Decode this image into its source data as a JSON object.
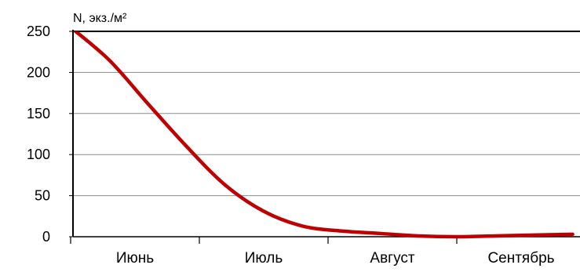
{
  "chart_data": {
    "type": "line",
    "ylabel": "N, экз./м²",
    "xlabel": "",
    "categories": [
      "Июнь",
      "Июль",
      "Август",
      "Сентябрь"
    ],
    "ylim": [
      0,
      250
    ],
    "yticks": [
      0,
      50,
      100,
      150,
      200,
      250
    ],
    "ytick_labels": [
      "0",
      "50",
      "100",
      "150",
      "200",
      "250"
    ],
    "grid": "horizontal",
    "legend": "none",
    "series": [
      {
        "color": "#c00000",
        "points": [
          {
            "x": 0.0,
            "y": 255
          },
          {
            "x": 0.3,
            "y": 215
          },
          {
            "x": 0.6,
            "y": 162
          },
          {
            "x": 0.9,
            "y": 110
          },
          {
            "x": 1.2,
            "y": 63
          },
          {
            "x": 1.5,
            "y": 31
          },
          {
            "x": 1.8,
            "y": 13
          },
          {
            "x": 2.1,
            "y": 7
          },
          {
            "x": 2.4,
            "y": 4
          },
          {
            "x": 2.7,
            "y": 1
          },
          {
            "x": 3.0,
            "y": 0
          },
          {
            "x": 3.3,
            "y": 1
          },
          {
            "x": 3.6,
            "y": 2
          },
          {
            "x": 3.9,
            "y": 3
          }
        ]
      }
    ]
  }
}
